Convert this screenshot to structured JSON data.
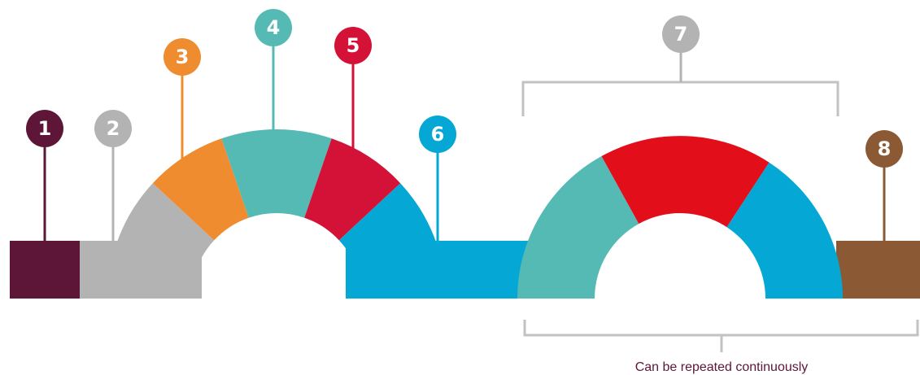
{
  "colors": {
    "plum": "#5e1638",
    "gray": "#b3b3b3",
    "orange": "#f08c30",
    "teal": "#55b9b4",
    "crimson": "#d41237",
    "cyan": "#05a8d4",
    "red": "#e20e1a",
    "brown": "#8b5a35",
    "bracket": "#c2c2c2",
    "caption": "#5e1638"
  },
  "markers": [
    {
      "label": "1",
      "color": "#5e1638"
    },
    {
      "label": "2",
      "color": "#b3b3b3"
    },
    {
      "label": "3",
      "color": "#f08c30"
    },
    {
      "label": "4",
      "color": "#55b9b4"
    },
    {
      "label": "5",
      "color": "#d41237"
    },
    {
      "label": "6",
      "color": "#05a8d4"
    },
    {
      "label": "7",
      "color": "#b3b3b3"
    },
    {
      "label": "8",
      "color": "#8b5a35"
    }
  ],
  "caption": "Can be repeated continuously"
}
